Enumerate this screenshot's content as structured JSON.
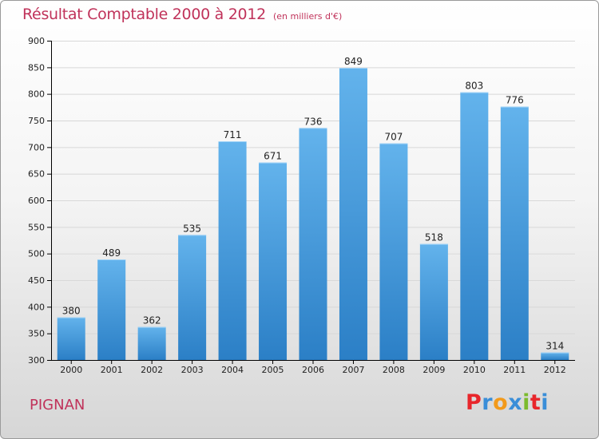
{
  "header": {
    "title": "Résultat Comptable 2000 à 2012",
    "subtitle": "(en milliers d'€)"
  },
  "footer": {
    "place": "PIGNAN",
    "logo_letters": [
      "P",
      "r",
      "o",
      "x",
      "i",
      "t",
      "i"
    ],
    "logo_colors": [
      "#e8262b",
      "#3a8ed8",
      "#f29a1b",
      "#3a8ed8",
      "#7cbb2e",
      "#e8262b",
      "#3a8ed8"
    ]
  },
  "colors": {
    "title": "#c0325a",
    "bar_top": "#63b3ec",
    "bar_bottom": "#2b7fc6",
    "grid": "#d8d8d8",
    "axis": "#000000"
  },
  "chart_data": {
    "type": "bar",
    "title": "Résultat Comptable 2000 à 2012",
    "subtitle": "(en milliers d'€)",
    "categories": [
      "2000",
      "2001",
      "2002",
      "2003",
      "2004",
      "2005",
      "2006",
      "2007",
      "2008",
      "2009",
      "2010",
      "2011",
      "2012"
    ],
    "values": [
      380,
      489,
      362,
      535,
      711,
      671,
      736,
      849,
      707,
      518,
      803,
      776,
      314
    ],
    "ylim": [
      300,
      900
    ],
    "yticks": [
      300,
      350,
      400,
      450,
      500,
      550,
      600,
      650,
      700,
      750,
      800,
      850,
      900
    ],
    "grid": true,
    "data_labels": true,
    "legend": "none"
  }
}
